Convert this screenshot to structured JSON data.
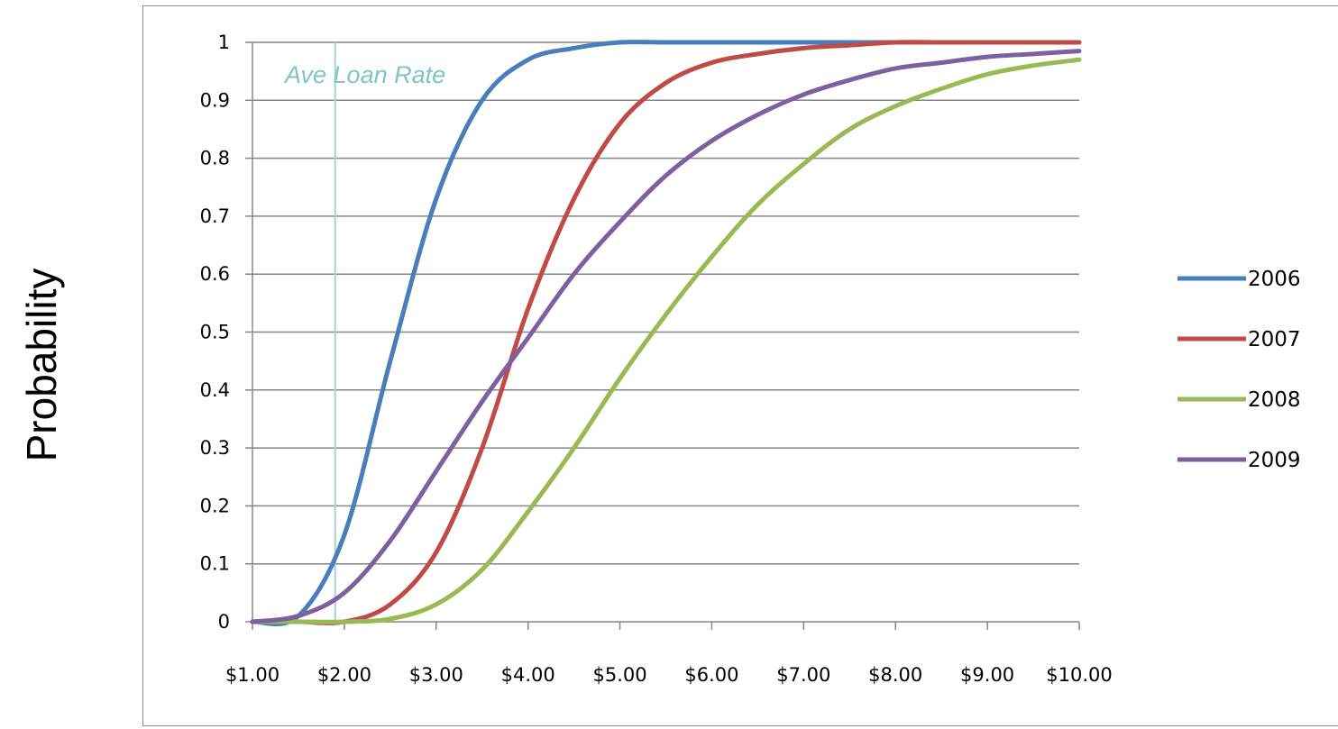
{
  "chart_data": {
    "type": "line",
    "ylabel": "Probability",
    "ylim": [
      0,
      1
    ],
    "xlim": [
      1,
      10
    ],
    "y_ticks": [
      "0",
      "0.1",
      "0.2",
      "0.3",
      "0.4",
      "0.5",
      "0.6",
      "0.7",
      "0.8",
      "0.9",
      "1"
    ],
    "x_ticks": [
      "$1.00",
      "$2.00",
      "$3.00",
      "$4.00",
      "$5.00",
      "$6.00",
      "$7.00",
      "$8.00",
      "$9.00",
      "$10.00"
    ],
    "grid": "horizontal",
    "legend_position": "right",
    "annotation": {
      "text": "Ave Loan Rate",
      "x": 1.9,
      "color": "#7fc4c9"
    },
    "x": [
      1.0,
      1.5,
      2.0,
      2.5,
      3.0,
      3.5,
      4.0,
      4.5,
      5.0,
      5.5,
      6.0,
      6.5,
      7.0,
      7.5,
      8.0,
      8.5,
      9.0,
      9.5,
      10.0
    ],
    "series": [
      {
        "name": "2006",
        "color": "#4a7ebb",
        "values": [
          0.0,
          0.01,
          0.15,
          0.45,
          0.73,
          0.9,
          0.97,
          0.99,
          1.0,
          1.0,
          1.0,
          1.0,
          1.0,
          1.0,
          1.0,
          1.0,
          1.0,
          1.0,
          1.0
        ]
      },
      {
        "name": "2007",
        "color": "#be4b48",
        "values": [
          0.0,
          0.0,
          0.0,
          0.03,
          0.12,
          0.3,
          0.54,
          0.73,
          0.86,
          0.93,
          0.965,
          0.98,
          0.99,
          0.995,
          1.0,
          1.0,
          1.0,
          1.0,
          1.0
        ]
      },
      {
        "name": "2008",
        "color": "#98b954",
        "values": [
          0.0,
          0.0,
          0.0,
          0.005,
          0.03,
          0.09,
          0.19,
          0.3,
          0.42,
          0.53,
          0.63,
          0.72,
          0.79,
          0.85,
          0.89,
          0.92,
          0.945,
          0.96,
          0.97
        ]
      },
      {
        "name": "2009",
        "color": "#7d60a0",
        "values": [
          0.0,
          0.01,
          0.05,
          0.14,
          0.26,
          0.38,
          0.49,
          0.6,
          0.69,
          0.77,
          0.83,
          0.875,
          0.91,
          0.935,
          0.955,
          0.965,
          0.975,
          0.98,
          0.985
        ]
      }
    ]
  }
}
